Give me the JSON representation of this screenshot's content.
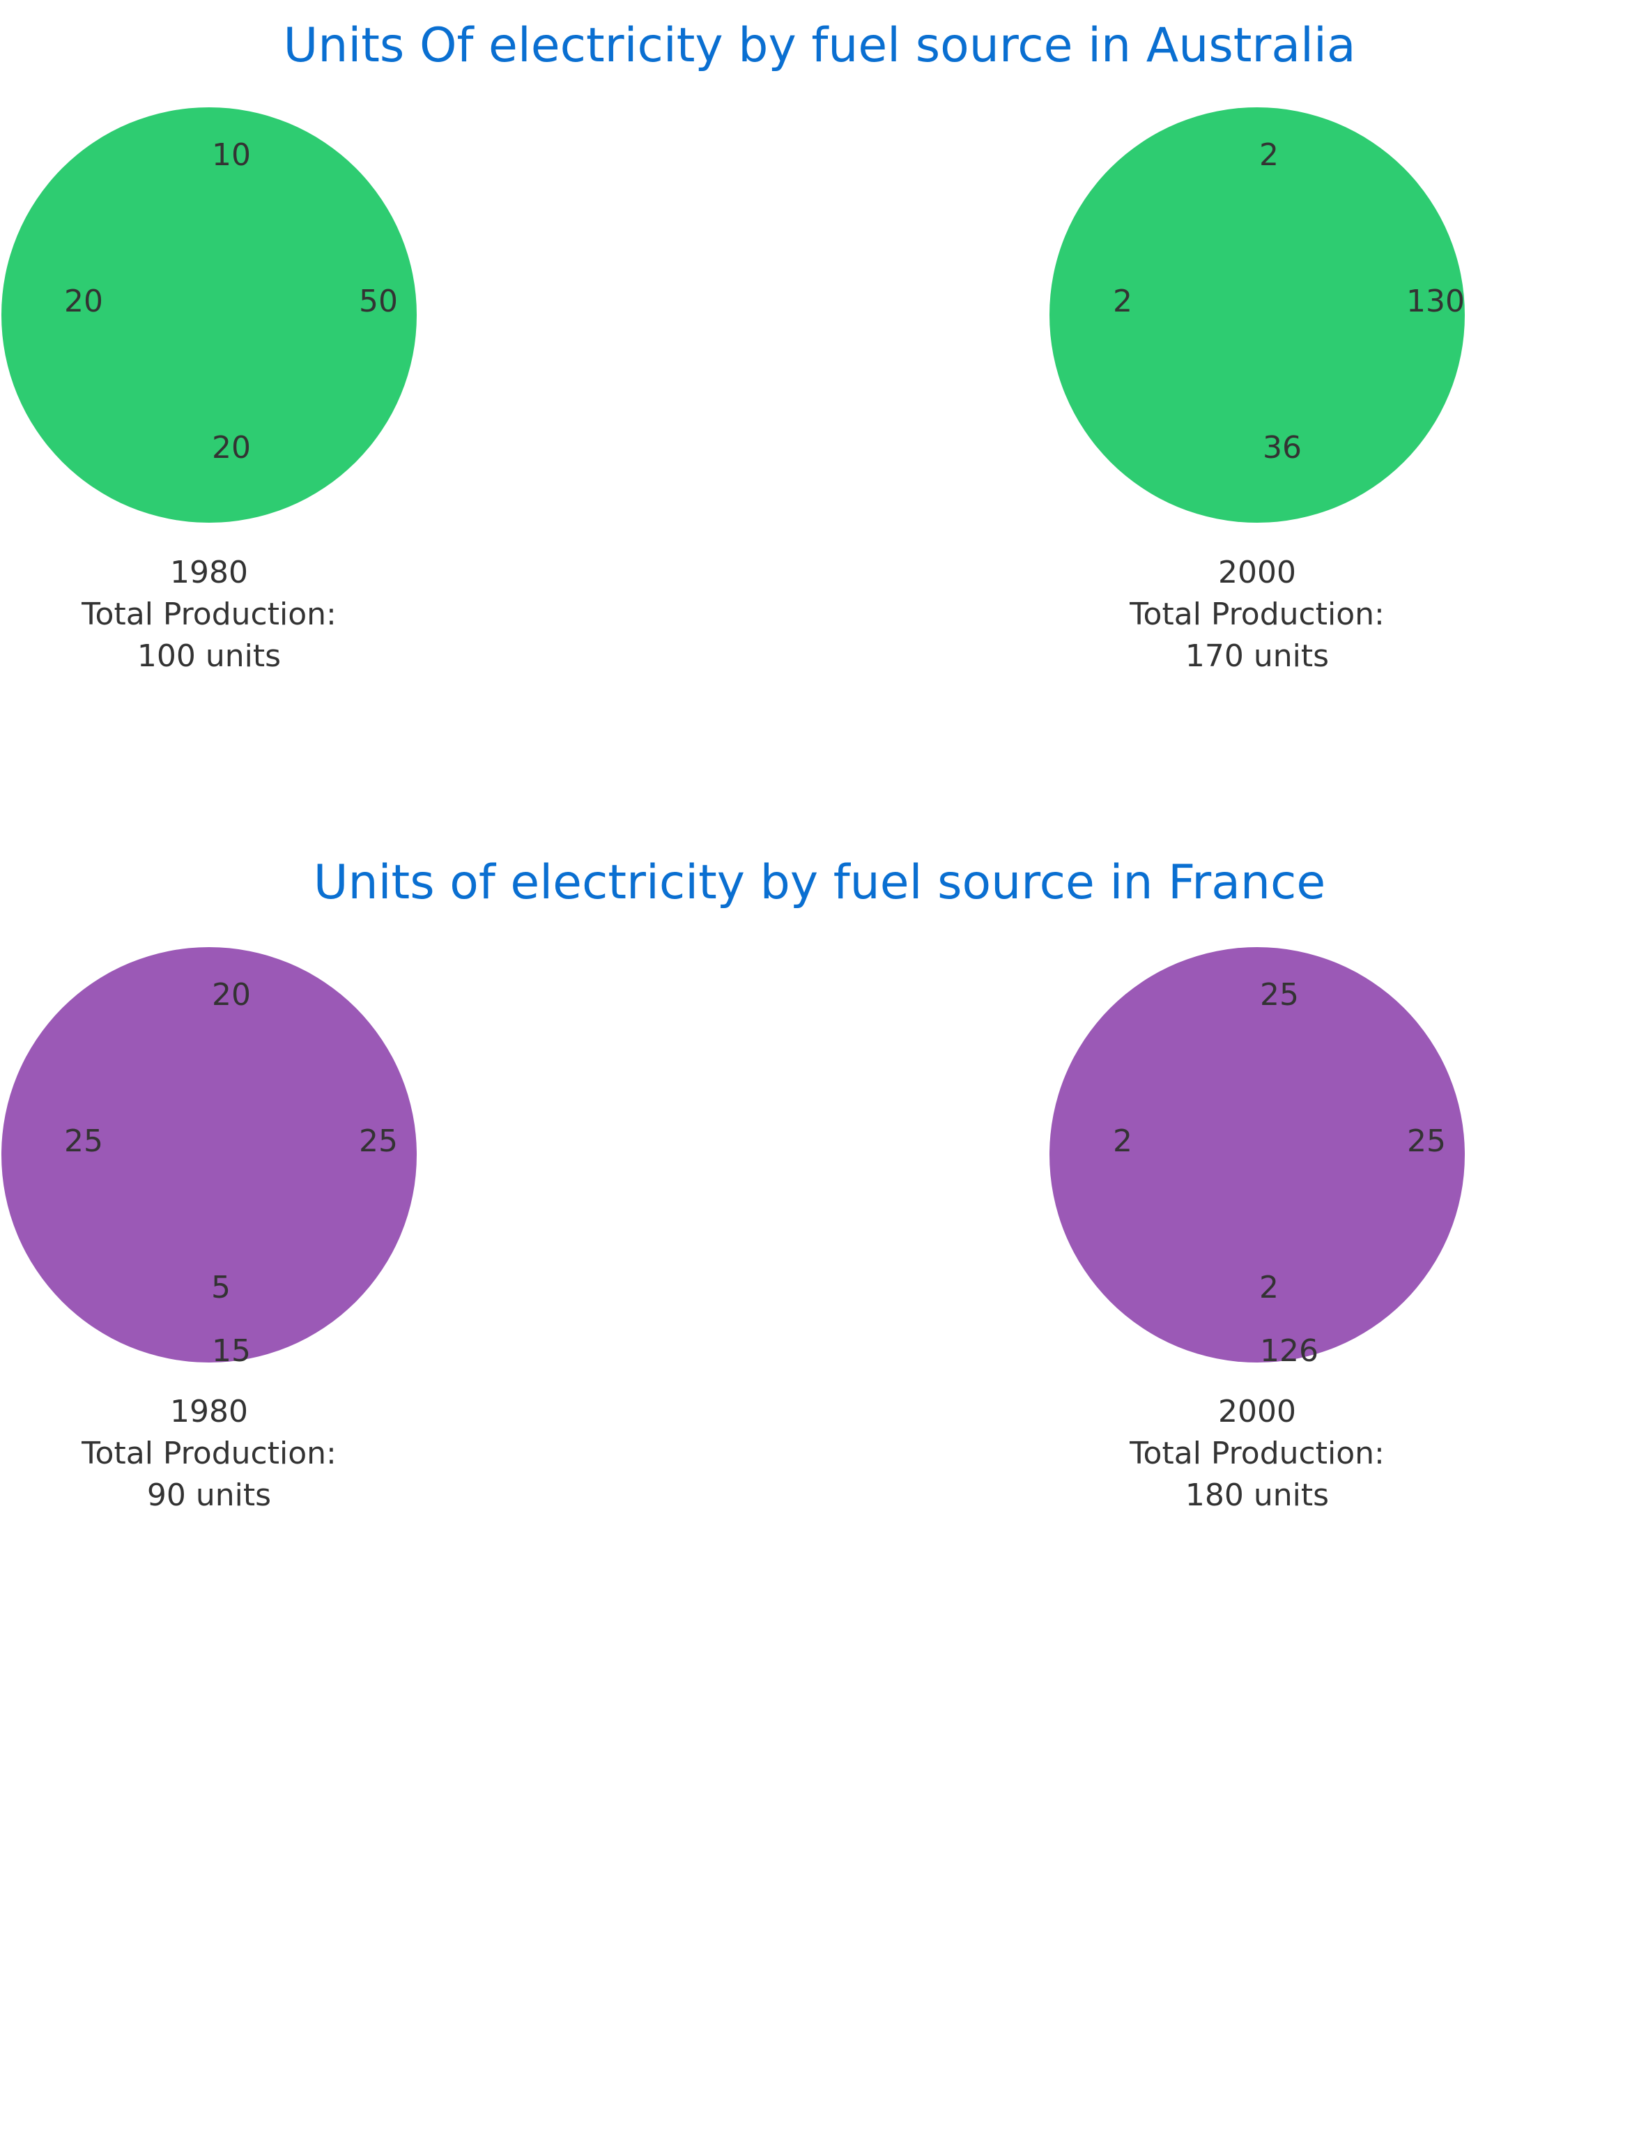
{
  "chart_data": [
    {
      "type": "pie",
      "title": "Units Of electricity by fuel source in Australia",
      "color": "#2ecc71",
      "pies": [
        {
          "year": "1980",
          "total_label": "Total Production:",
          "total_value": "100 units",
          "labels": [
            "10",
            "50",
            "20",
            "20"
          ]
        },
        {
          "year": "2000",
          "total_label": "Total Production:",
          "total_value": "170 units",
          "labels": [
            "2",
            "130",
            "36",
            "2"
          ]
        }
      ]
    },
    {
      "type": "pie",
      "title": "Units of electricity by fuel source in France",
      "color": "#9b59b6",
      "pies": [
        {
          "year": "1980",
          "total_label": "Total Production:",
          "total_value": "90 units",
          "labels": [
            "20",
            "25",
            "5",
            "25",
            "15"
          ]
        },
        {
          "year": "2000",
          "total_label": "Total Production:",
          "total_value": "180 units",
          "labels": [
            "25",
            "25",
            "2",
            "2",
            "126"
          ]
        }
      ]
    }
  ]
}
